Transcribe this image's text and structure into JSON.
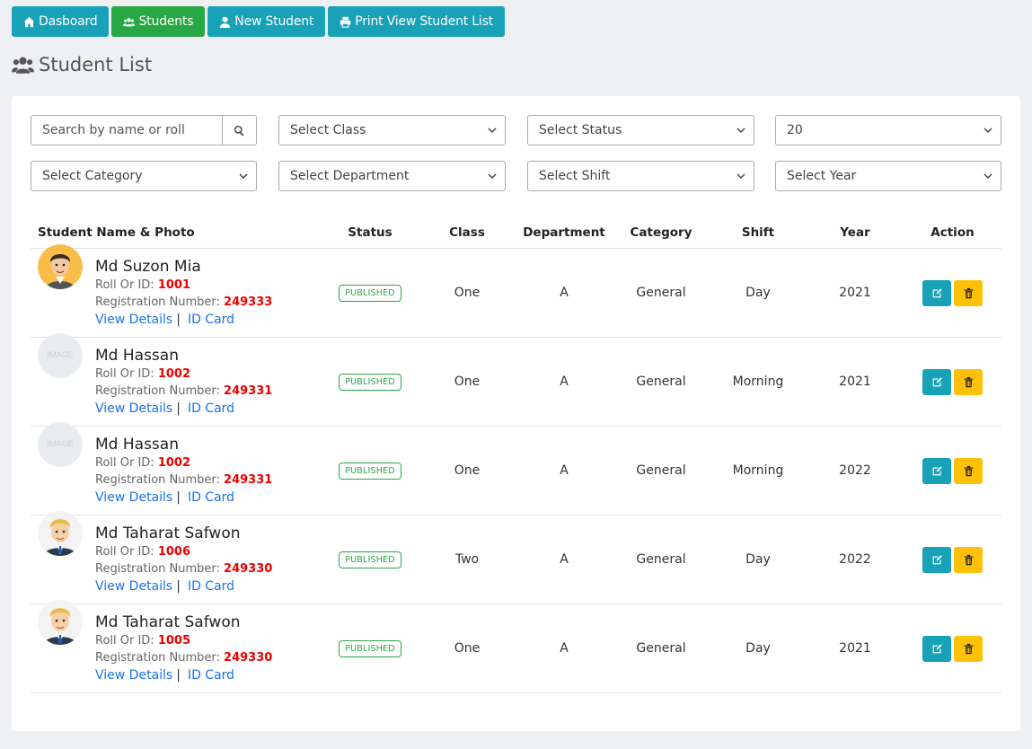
{
  "toolbar": {
    "dashboard_label": "Dasboard",
    "students_label": "Students",
    "new_student_label": "New Student",
    "print_label": "Print View Student List"
  },
  "page_title": "Student List",
  "filters": {
    "search_placeholder": "Search by name or roll",
    "class": "Select Class",
    "status": "Select Status",
    "per_page": "20",
    "category": "Select Category",
    "department": "Select Department",
    "shift": "Select Shift",
    "year": "Select Year"
  },
  "table": {
    "headers": [
      "Student Name & Photo",
      "Status",
      "Class",
      "Department",
      "Category",
      "Shift",
      "Year",
      "Action"
    ],
    "roll_label": "Roll Or ID:",
    "reg_label": "Registration Number:",
    "view_details": "View Details",
    "id_card": "ID Card",
    "rows": [
      {
        "name": "Md Suzon Mia",
        "roll": "1001",
        "reg": "249333",
        "status": "PUBLISHED",
        "class": "One",
        "department": "A",
        "category": "General",
        "shift": "Day",
        "year": "2021",
        "avatar": "male-avatar-dark-hair-icon"
      },
      {
        "name": "Md Hassan",
        "roll": "1002",
        "reg": "249331",
        "status": "PUBLISHED",
        "class": "One",
        "department": "A",
        "category": "General",
        "shift": "Morning",
        "year": "2021",
        "avatar": "image-placeholder-icon"
      },
      {
        "name": "Md Hassan",
        "roll": "1002",
        "reg": "249331",
        "status": "PUBLISHED",
        "class": "One",
        "department": "A",
        "category": "General",
        "shift": "Morning",
        "year": "2022",
        "avatar": "image-placeholder-icon"
      },
      {
        "name": "Md Taharat Safwon",
        "roll": "1006",
        "reg": "249330",
        "status": "PUBLISHED",
        "class": "Two",
        "department": "A",
        "category": "General",
        "shift": "Day",
        "year": "2022",
        "avatar": "male-avatar-blond-suit-icon"
      },
      {
        "name": "Md Taharat Safwon",
        "roll": "1005",
        "reg": "249330",
        "status": "PUBLISHED",
        "class": "One",
        "department": "A",
        "category": "General",
        "shift": "Day",
        "year": "2021",
        "avatar": "male-avatar-blond-suit-icon"
      }
    ]
  },
  "colors": {
    "teal": "#17a2b8",
    "green": "#28a745",
    "warning": "#ffc107",
    "link": "#1a73e8",
    "red": "#e00000"
  }
}
